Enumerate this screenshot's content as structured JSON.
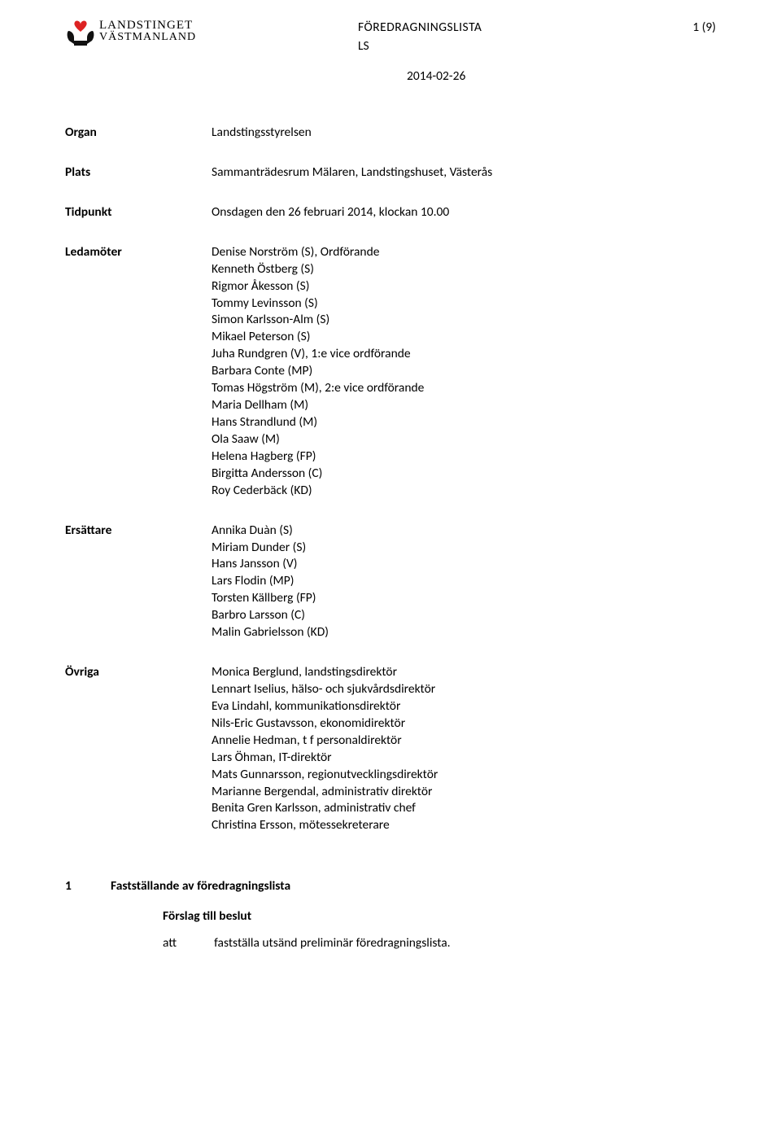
{
  "logo": {
    "line1": "LANDSTINGET",
    "line2": "VÄSTMANLAND"
  },
  "header": {
    "title": "FÖREDRAGNINGSLISTA",
    "subtitle": "LS",
    "page_number": "1 (9)",
    "date": "2014-02-26"
  },
  "meta": {
    "organ_label": "Organ",
    "organ_value": "Landstingsstyrelsen",
    "plats_label": "Plats",
    "plats_value": "Sammanträdesrum Mälaren, Landstingshuset, Västerås",
    "tidpunkt_label": "Tidpunkt",
    "tidpunkt_value": "Onsdagen den 26 februari 2014, klockan 10.00"
  },
  "members": {
    "ledamoter_label": "Ledamöter",
    "ledamoter": [
      "Denise Norström (S), Ordförande",
      "Kenneth Östberg (S)",
      "Rigmor Åkesson (S)",
      "Tommy Levinsson (S)",
      "Simon Karlsson-Alm (S)",
      "Mikael Peterson (S)",
      "Juha Rundgren (V), 1:e vice ordförande",
      "Barbara Conte (MP)",
      "Tomas Högström (M), 2:e vice ordförande",
      "Maria Dellham (M)",
      "Hans Strandlund (M)",
      "Ola Saaw (M)",
      "Helena Hagberg (FP)",
      "Birgitta Andersson (C)",
      "Roy Cederbäck (KD)"
    ],
    "ersattare_label": "Ersättare",
    "ersattare": [
      "Annika Duàn (S)",
      "Miriam Dunder (S)",
      "Hans Jansson (V)",
      "Lars Flodin (MP)",
      "Torsten Källberg (FP)",
      "Barbro Larsson (C)",
      "Malin Gabrielsson (KD)"
    ],
    "ovriga_label": "Övriga",
    "ovriga": [
      "Monica Berglund, landstingsdirektör",
      "Lennart Iselius, hälso- och sjukvårdsdirektör",
      "Eva Lindahl, kommunikationsdirektör",
      "Nils-Eric Gustavsson, ekonomidirektör",
      "Annelie Hedman, t f personaldirektör",
      "Lars Öhman, IT-direktör",
      "Mats Gunnarsson, regionutvecklingsdirektör",
      "Marianne Bergendal, administrativ direktör",
      "Benita Gren Karlsson, administrativ chef",
      "Christina Ersson, mötessekreterare"
    ]
  },
  "agenda": {
    "item_number": "1",
    "item_title": "Fastställande av föredragningslista",
    "proposal_label": "Förslag till beslut",
    "att_label": "att",
    "att_text": "fastställa utsänd preliminär föredragningslista."
  }
}
